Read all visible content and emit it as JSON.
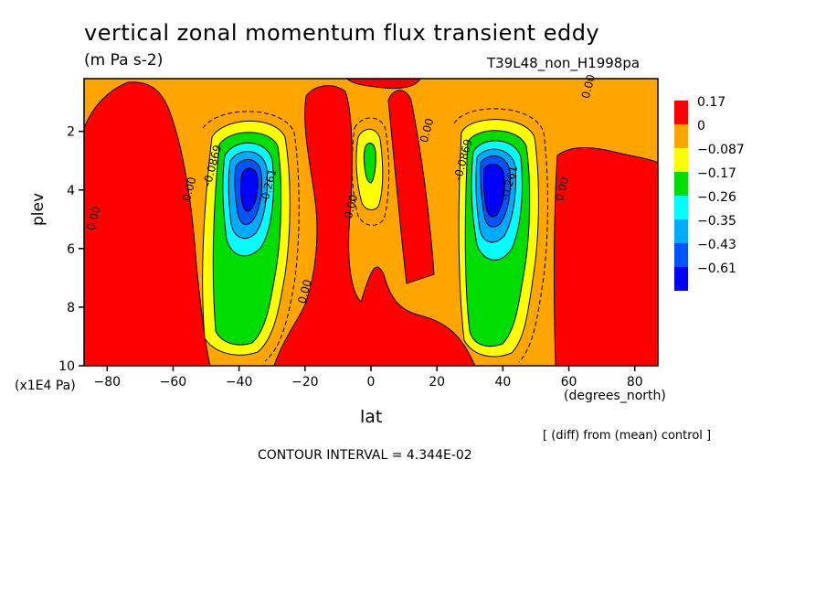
{
  "chart_data": {
    "type": "contour",
    "title": "vertical zonal momentum flux transient eddy",
    "units": "(m Pa s-2)",
    "run_name": "T39L48_non_H1998pa",
    "xlabel": "lat",
    "x_units": "(degrees_north)",
    "ylabel": "plev",
    "y_units": "(x1E4 Pa)",
    "xlim": [
      -87,
      87
    ],
    "ylim": [
      0.2,
      10
    ],
    "y_inverted": true,
    "x_ticks": [
      -80,
      -60,
      -40,
      -20,
      0,
      20,
      40,
      60,
      80
    ],
    "y_ticks": [
      2,
      4,
      6,
      8,
      10
    ],
    "x_tick_labels": [
      "−80",
      "−60",
      "−40",
      "−20",
      "0",
      "20",
      "40",
      "60",
      "80"
    ],
    "y_tick_labels": [
      "2",
      "4",
      "6",
      "8",
      "10"
    ],
    "contour_interval": "CONTOUR INTERVAL = 4.344E-02",
    "note": "[ (diff) from (mean) control ]",
    "legend": {
      "placement": "right",
      "levels": [
        {
          "label": "0.17",
          "color": "#ff0000"
        },
        {
          "label": "0",
          "color": "#ffa500"
        },
        {
          "label": "−0.087",
          "color": "#ffff00"
        },
        {
          "label": "−0.17",
          "color": "#00dd00"
        },
        {
          "label": "−0.26",
          "color": "#00ffff"
        },
        {
          "label": "−0.35",
          "color": "#00aaff"
        },
        {
          "label": "−0.43",
          "color": "#0055ff"
        },
        {
          "label": "−0.61",
          "color": "#0000ff"
        }
      ]
    },
    "contour_labels": [
      {
        "text": "0.00",
        "lat": -83,
        "plev": 5.0
      },
      {
        "text": "0.00",
        "lat": -54,
        "plev": 4.0
      },
      {
        "text": "-0.0869",
        "lat": -47,
        "plev": 3.2
      },
      {
        "text": "-0.261",
        "lat": -30,
        "plev": 3.9
      },
      {
        "text": "0.00",
        "lat": -19,
        "plev": 7.5
      },
      {
        "text": "0.00",
        "lat": -5,
        "plev": 4.6
      },
      {
        "text": "0.00",
        "lat": 18,
        "plev": 2.0
      },
      {
        "text": "-0.0869",
        "lat": 29,
        "plev": 3.0
      },
      {
        "text": "-0.261",
        "lat": 43,
        "plev": 3.8
      },
      {
        "text": "0.00",
        "lat": 59,
        "plev": 4.0
      },
      {
        "text": "0.00",
        "lat": 67,
        "plev": 0.5
      }
    ]
  }
}
